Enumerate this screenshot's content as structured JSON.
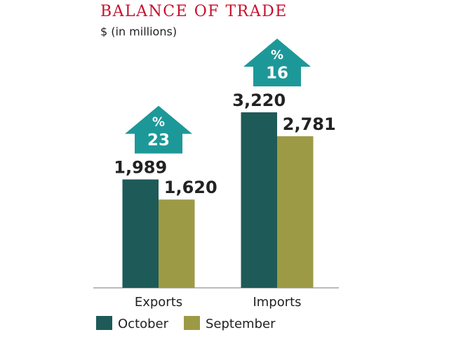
{
  "chart_data": {
    "type": "bar",
    "title": "BALANCE OF TRADE",
    "subtitle": "$ (in millions)",
    "categories": [
      "Exports",
      "Imports"
    ],
    "series": [
      {
        "name": "October",
        "color": "#1e5a58",
        "values": [
          1989,
          3220
        ],
        "value_labels": [
          "1,989",
          "3,220"
        ]
      },
      {
        "name": "September",
        "color": "#9d9a46",
        "values": [
          1620,
          2781
        ],
        "value_labels": [
          "1,620",
          "2,781"
        ]
      }
    ],
    "change_symbol": "%",
    "changes": [
      23,
      16
    ],
    "change_color": "#1d9899"
  }
}
